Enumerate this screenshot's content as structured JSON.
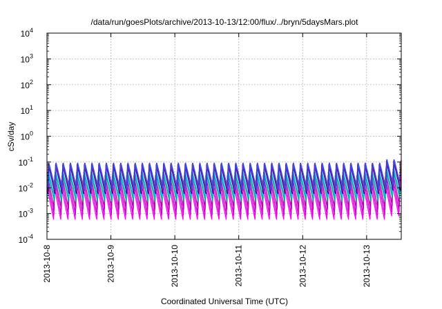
{
  "chart_data": {
    "type": "line",
    "title": "/data/run/goesPlots/archive/2013-10-13/12:00/flux/../bryn/5daysMars.plot",
    "xlabel": "Coordinated Universal Time (UTC)",
    "ylabel": "cSv/day",
    "yscale": "log",
    "ylim": [
      0.0001,
      10000
    ],
    "xlim": [
      "2013-10-08T00:00",
      "2013-10-13T13:00"
    ],
    "x_ticks": [
      "2013-10-8",
      "2013-10-9",
      "2013-10-10",
      "2013-10-11",
      "2013-10-12",
      "2013-10-13"
    ],
    "y_ticks": [
      {
        "base": "10",
        "exp": "-4"
      },
      {
        "base": "10",
        "exp": "-3"
      },
      {
        "base": "10",
        "exp": "-2"
      },
      {
        "base": "10",
        "exp": "-1"
      },
      {
        "base": "10",
        "exp": "0"
      },
      {
        "base": "10",
        "exp": "1"
      },
      {
        "base": "10",
        "exp": "2"
      },
      {
        "base": "10",
        "exp": "3"
      },
      {
        "base": "10",
        "exp": "4"
      }
    ],
    "grid": true,
    "sawtooth_period_hours": 2.7,
    "series": [
      {
        "color": "#ff00ff",
        "peak": 0.012,
        "trough": 0.0006
      },
      {
        "color": "#cc00cc",
        "peak": 0.02,
        "trough": 0.0009
      },
      {
        "color": "#b800b8",
        "peak": 0.03,
        "trough": 0.0015
      },
      {
        "color": "#1a9a9a",
        "peak": 0.04,
        "trough": 0.003
      },
      {
        "color": "#00cccc",
        "peak": 0.05,
        "trough": 0.004
      },
      {
        "color": "#0000ff",
        "peak": 0.08,
        "trough": 0.006
      },
      {
        "color": "#ff0000",
        "peak": 0.09,
        "trough": 0.007
      },
      {
        "color": "#2255ff",
        "peak": 0.09,
        "trough": 0.008
      }
    ]
  }
}
